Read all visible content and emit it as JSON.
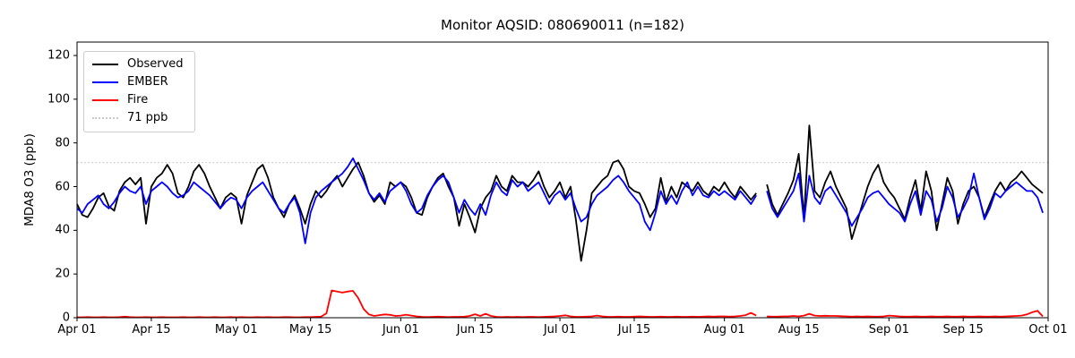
{
  "chart_data": {
    "type": "line",
    "title": "Monitor AQSID: 080690011 (n=182)",
    "aqsid": "080690011",
    "n_points": 182,
    "xlabel": "",
    "ylabel": "MDA8 O3 (ppb)",
    "x_start_date": "Apr 01",
    "x_end_date": "Sep 30",
    "n_days": 183,
    "x_tick_labels": [
      "Apr 01",
      "Apr 15",
      "May 01",
      "May 15",
      "Jun 01",
      "Jun 15",
      "Jul 01",
      "Jul 15",
      "Aug 01",
      "Aug 15",
      "Sep 01",
      "Sep 15",
      "Oct 01"
    ],
    "x_tick_days": [
      0,
      14,
      30,
      44,
      61,
      75,
      91,
      105,
      122,
      136,
      153,
      167,
      183
    ],
    "y_ticks": [
      0,
      20,
      40,
      60,
      80,
      100,
      120
    ],
    "ylim": [
      0,
      126
    ],
    "grid": false,
    "legend_position": "upper-left",
    "missing_data_note": "gap around Aug 08",
    "threshold": {
      "label": "71 ppb",
      "value": 71,
      "color": "#c9c9c9",
      "style": "dotted"
    },
    "series": [
      {
        "name": "Observed",
        "color": "#000000",
        "values": [
          52,
          47,
          46,
          50,
          55,
          57,
          51,
          49,
          58,
          62,
          64,
          61,
          64,
          43,
          60,
          64,
          66,
          70,
          66,
          57,
          55,
          60,
          67,
          70,
          66,
          60,
          55,
          50,
          55,
          57,
          55,
          43,
          56,
          62,
          68,
          70,
          64,
          55,
          50,
          46,
          52,
          56,
          50,
          43,
          52,
          58,
          55,
          58,
          62,
          65,
          60,
          64,
          68,
          71,
          65,
          57,
          53,
          56,
          52,
          62,
          60,
          62,
          60,
          55,
          48,
          47,
          55,
          60,
          64,
          66,
          60,
          55,
          42,
          52,
          46,
          39,
          50,
          55,
          58,
          65,
          60,
          58,
          65,
          62,
          62,
          60,
          63,
          67,
          60,
          55,
          58,
          62,
          55,
          60,
          45,
          26,
          40,
          57,
          60,
          63,
          65,
          71,
          72,
          68,
          60,
          58,
          57,
          52,
          46,
          50,
          64,
          53,
          60,
          55,
          62,
          60,
          58,
          62,
          58,
          56,
          60,
          58,
          62,
          58,
          55,
          60,
          57,
          54,
          57,
          null,
          61,
          52,
          47,
          52,
          57,
          63,
          75,
          46,
          88,
          58,
          55,
          62,
          67,
          60,
          55,
          50,
          36,
          44,
          52,
          60,
          66,
          70,
          62,
          58,
          55,
          50,
          45,
          55,
          63,
          49,
          67,
          58,
          40,
          52,
          64,
          58,
          43,
          52,
          58,
          60,
          55,
          46,
          52,
          58,
          62,
          58,
          62,
          64,
          67,
          64,
          61,
          59,
          57
        ]
      },
      {
        "name": "EMBER",
        "color": "#0000ff",
        "values": [
          50,
          48,
          52,
          54,
          56,
          52,
          50,
          53,
          57,
          60,
          58,
          57,
          60,
          52,
          58,
          60,
          62,
          60,
          57,
          55,
          56,
          58,
          62,
          60,
          58,
          56,
          53,
          50,
          53,
          55,
          54,
          50,
          55,
          58,
          60,
          62,
          58,
          54,
          50,
          48,
          52,
          55,
          48,
          34,
          48,
          55,
          58,
          60,
          62,
          64,
          66,
          69,
          73,
          68,
          63,
          57,
          54,
          57,
          53,
          58,
          60,
          62,
          58,
          52,
          48,
          50,
          56,
          60,
          63,
          65,
          62,
          55,
          48,
          54,
          50,
          47,
          52,
          47,
          56,
          62,
          58,
          56,
          63,
          60,
          62,
          58,
          60,
          62,
          57,
          52,
          56,
          58,
          54,
          57,
          50,
          44,
          46,
          52,
          56,
          58,
          60,
          63,
          65,
          62,
          58,
          55,
          52,
          44,
          40,
          48,
          58,
          52,
          56,
          52,
          58,
          62,
          56,
          60,
          56,
          55,
          58,
          56,
          58,
          56,
          54,
          58,
          55,
          52,
          56,
          null,
          58,
          50,
          46,
          50,
          54,
          58,
          66,
          44,
          65,
          55,
          52,
          58,
          60,
          56,
          52,
          48,
          42,
          46,
          50,
          55,
          57,
          58,
          55,
          52,
          50,
          48,
          44,
          52,
          58,
          47,
          58,
          54,
          44,
          50,
          60,
          55,
          46,
          50,
          55,
          66,
          55,
          45,
          50,
          57,
          55,
          58,
          60,
          62,
          60,
          58,
          58,
          55,
          48
        ]
      },
      {
        "name": "Fire",
        "color": "#ff0000",
        "values": [
          0.2,
          0.2,
          0.3,
          0.2,
          0.2,
          0.3,
          0.2,
          0.2,
          0.3,
          0.5,
          0.3,
          0.2,
          0.2,
          0.3,
          0.2,
          0.2,
          0.3,
          0.2,
          0.2,
          0.2,
          0.3,
          0.2,
          0.2,
          0.3,
          0.2,
          0.2,
          0.3,
          0.2,
          0.2,
          0.3,
          0.2,
          0.3,
          0.2,
          0.2,
          0.3,
          0.2,
          0.3,
          0.2,
          0.2,
          0.3,
          0.3,
          0.2,
          0.2,
          0.3,
          0.3,
          0.4,
          0.5,
          2.0,
          12.5,
          12.0,
          11.5,
          12.0,
          12.3,
          9.0,
          4.0,
          1.5,
          0.8,
          1.2,
          1.5,
          1.3,
          0.8,
          1.0,
          1.4,
          1.0,
          0.6,
          0.4,
          0.3,
          0.4,
          0.5,
          0.4,
          0.3,
          0.4,
          0.4,
          0.5,
          0.8,
          1.6,
          0.8,
          1.8,
          0.8,
          0.4,
          0.3,
          0.4,
          0.3,
          0.4,
          0.3,
          0.4,
          0.4,
          0.3,
          0.4,
          0.5,
          0.6,
          0.8,
          1.1,
          0.6,
          0.4,
          0.4,
          0.5,
          0.6,
          1.0,
          0.6,
          0.4,
          0.4,
          0.5,
          0.4,
          0.4,
          0.5,
          0.6,
          0.5,
          0.4,
          0.4,
          0.5,
          0.4,
          0.4,
          0.5,
          0.4,
          0.4,
          0.5,
          0.4,
          0.5,
          0.6,
          0.5,
          0.6,
          0.6,
          0.5,
          0.6,
          0.8,
          1.2,
          2.2,
          1.0,
          null,
          0.6,
          0.5,
          0.5,
          0.6,
          0.6,
          0.8,
          0.6,
          1.0,
          1.8,
          1.0,
          0.8,
          0.9,
          0.8,
          0.8,
          0.7,
          0.6,
          0.5,
          0.6,
          0.5,
          0.6,
          0.5,
          0.5,
          0.6,
          1.0,
          0.8,
          0.6,
          0.5,
          0.5,
          0.6,
          0.5,
          0.5,
          0.6,
          0.5,
          0.5,
          0.6,
          0.5,
          0.5,
          0.6,
          0.5,
          0.5,
          0.6,
          0.5,
          0.5,
          0.6,
          0.5,
          0.6,
          0.7,
          0.8,
          1.0,
          1.5,
          2.5,
          3.2,
          0.6
        ]
      }
    ]
  }
}
